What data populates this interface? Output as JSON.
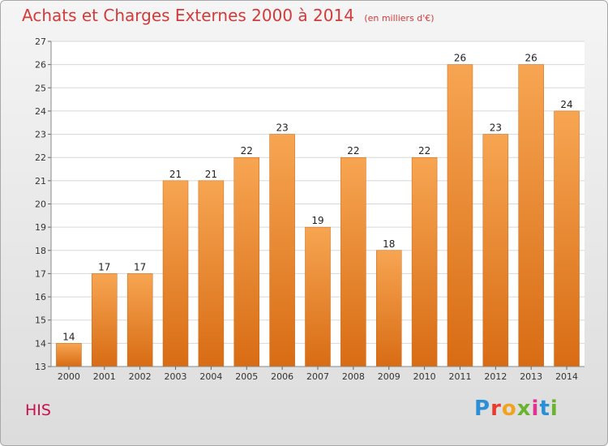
{
  "chart_data": {
    "type": "bar",
    "title": "Achats et Charges Externes 2000 à 2014",
    "subtitle": "(en milliers d'€)",
    "categories": [
      "2000",
      "2001",
      "2002",
      "2003",
      "2004",
      "2005",
      "2006",
      "2007",
      "2008",
      "2009",
      "2010",
      "2011",
      "2012",
      "2013",
      "2014"
    ],
    "values": [
      14,
      17,
      17,
      21,
      21,
      22,
      23,
      19,
      22,
      18,
      22,
      26,
      23,
      26,
      24
    ],
    "ylim": [
      13,
      27
    ],
    "yticks": [
      13,
      14,
      15,
      16,
      17,
      18,
      19,
      20,
      21,
      22,
      23,
      24,
      25,
      26,
      27
    ],
    "grid": true,
    "bar_color": "#f08a2c"
  },
  "footer": {
    "place": "HIS",
    "brand": "Proxiti"
  },
  "brand_colors": [
    "#2a8fd6",
    "#e83c2c",
    "#f2a21c",
    "#6ab42d",
    "#e0338f",
    "#2a8fd6",
    "#6ab42d"
  ]
}
